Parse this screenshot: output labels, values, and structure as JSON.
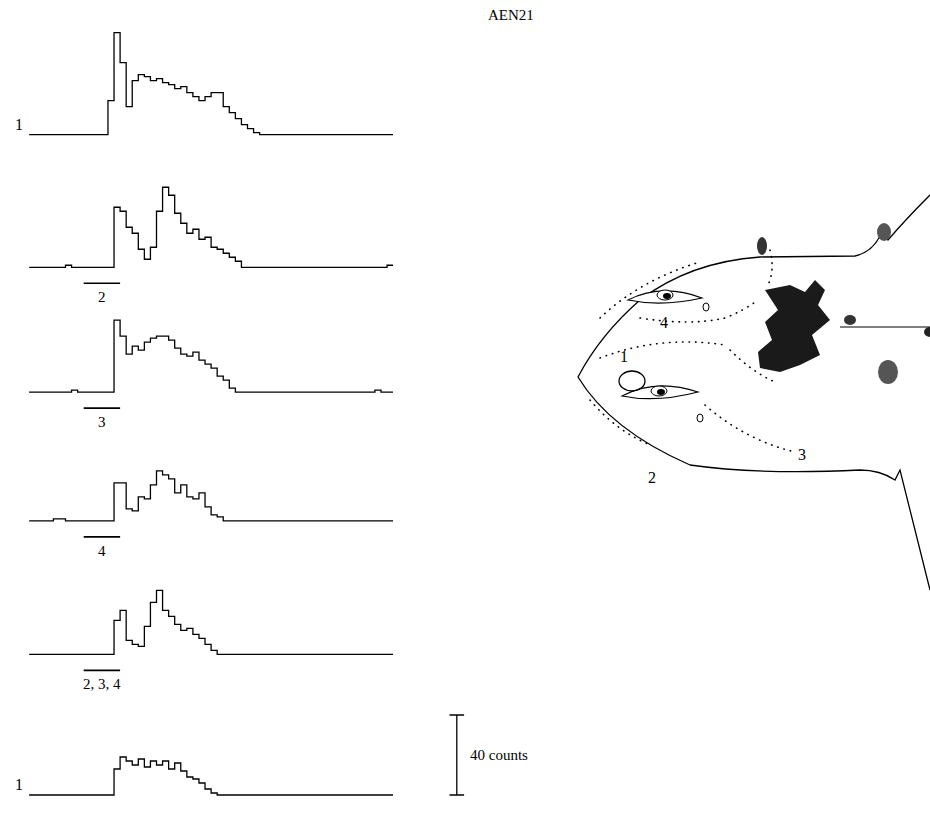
{
  "chart_data": {
    "type": "histogram",
    "title": "AEN21",
    "color": "#000000",
    "tick_labels": false,
    "grid": false,
    "xlim": [
      0,
      60
    ],
    "ylim": [
      -10,
      52
    ],
    "bins": [
      0,
      1,
      2,
      3,
      4,
      5,
      6,
      7,
      8,
      9,
      10,
      11,
      12,
      13,
      14,
      15,
      16,
      17,
      18,
      19,
      20,
      21,
      22,
      23,
      24,
      25,
      26,
      27,
      28,
      29,
      30,
      31,
      32,
      33,
      34,
      35,
      36,
      37,
      38,
      39,
      40,
      41,
      42,
      43,
      44,
      45,
      46,
      47,
      48,
      49,
      50,
      51,
      52,
      53,
      54,
      55,
      56,
      57,
      58,
      59,
      60
    ],
    "panels": [
      {
        "label": "1",
        "counts": [
          0,
          0,
          0,
          0,
          0,
          0,
          0,
          0,
          0,
          0,
          0,
          0,
          0,
          17,
          51,
          36,
          14,
          27,
          30,
          29,
          27,
          28,
          26,
          25,
          23,
          24,
          21,
          19,
          17,
          19,
          21,
          21,
          14,
          11,
          8,
          5,
          3,
          1,
          0,
          0,
          0,
          0,
          0,
          0,
          0,
          0,
          0,
          0,
          0,
          0,
          0,
          0,
          0,
          0,
          0,
          0,
          0,
          0,
          0,
          0
        ]
      },
      {
        "counts": [
          0,
          0,
          0,
          0,
          0,
          0,
          1,
          0,
          0,
          0,
          0,
          0,
          0,
          0,
          30,
          28,
          20,
          17,
          9,
          4,
          10,
          28,
          40,
          36,
          27,
          22,
          17,
          19,
          14,
          15,
          10,
          9,
          7,
          5,
          3,
          0,
          0,
          0,
          0,
          0,
          0,
          0,
          0,
          0,
          0,
          0,
          0,
          0,
          0,
          0,
          0,
          0,
          0,
          0,
          0,
          0,
          0,
          0,
          0,
          1
        ],
        "stimulus": {
          "label": "2",
          "start": 9,
          "end": 15
        }
      },
      {
        "counts": [
          0,
          0,
          0,
          0,
          0,
          0,
          0,
          1,
          0,
          0,
          0,
          0,
          0,
          0,
          36,
          28,
          19,
          23,
          21,
          25,
          27,
          28,
          28,
          26,
          22,
          19,
          18,
          20,
          16,
          14,
          12,
          8,
          6,
          2,
          0,
          0,
          0,
          0,
          0,
          0,
          0,
          0,
          0,
          0,
          0,
          0,
          0,
          0,
          0,
          0,
          0,
          0,
          0,
          0,
          0,
          0,
          0,
          1,
          0,
          0
        ],
        "stimulus": {
          "label": "3",
          "start": 9,
          "end": 15
        }
      },
      {
        "counts": [
          0,
          0,
          0,
          0,
          1,
          1,
          0,
          0,
          0,
          0,
          0,
          0,
          0,
          0,
          19,
          19,
          6,
          5,
          12,
          11,
          18,
          25,
          23,
          21,
          14,
          18,
          12,
          11,
          14,
          7,
          3,
          2,
          0,
          0,
          0,
          0,
          0,
          0,
          0,
          0,
          0,
          0,
          0,
          0,
          0,
          0,
          0,
          0,
          0,
          0,
          0,
          0,
          0,
          0,
          0,
          0,
          0,
          0,
          0,
          0
        ],
        "stimulus": {
          "label": "4",
          "start": 9,
          "end": 15
        }
      },
      {
        "counts": [
          0,
          0,
          0,
          0,
          0,
          0,
          0,
          0,
          0,
          0,
          0,
          0,
          0,
          0,
          17,
          22,
          7,
          5,
          4,
          14,
          26,
          32,
          22,
          19,
          15,
          12,
          13,
          10,
          8,
          5,
          2,
          0,
          0,
          0,
          0,
          0,
          0,
          0,
          0,
          0,
          0,
          0,
          0,
          0,
          0,
          0,
          0,
          0,
          0,
          0,
          0,
          0,
          0,
          0,
          0,
          0,
          0,
          0,
          0,
          0
        ],
        "stimulus": {
          "label": "2, 3, 4",
          "start": 9,
          "end": 15
        }
      },
      {
        "label": "1",
        "counts": [
          0,
          0,
          0,
          0,
          0,
          0,
          0,
          0,
          0,
          0,
          0,
          0,
          0,
          0,
          13,
          19,
          17,
          15,
          18,
          14,
          17,
          15,
          17,
          13,
          16,
          12,
          9,
          8,
          6,
          3,
          1,
          0,
          0,
          0,
          0,
          0,
          0,
          0,
          0,
          0,
          0,
          0,
          0,
          0,
          0,
          0,
          0,
          0,
          0,
          0,
          0,
          0,
          0,
          0,
          0,
          0,
          0,
          0,
          0,
          0
        ]
      }
    ],
    "scale_bar": {
      "value": 40,
      "label": "40 counts"
    }
  },
  "diagram": {
    "labels": [
      "1",
      "2",
      "3",
      "4"
    ]
  }
}
